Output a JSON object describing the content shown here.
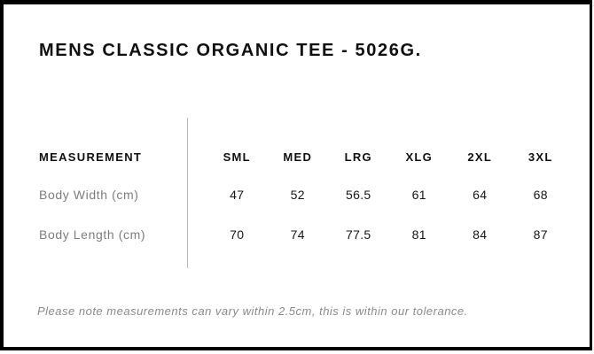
{
  "page": {
    "title": "MENS CLASSIC ORGANIC TEE - 5026G.",
    "tolerance_note": "Please note measurements can vary within 2.5cm, this is within our tolerance."
  },
  "size_chart": {
    "measurement_header": "MEASUREMENT",
    "size_headers": [
      "SML",
      "MED",
      "LRG",
      "XLG",
      "2XL",
      "3XL"
    ],
    "rows": [
      {
        "label": "Body Width (cm)",
        "values": [
          "47",
          "52",
          "56.5",
          "61",
          "64",
          "68"
        ]
      },
      {
        "label": "Body Length (cm)",
        "values": [
          "70",
          "74",
          "77.5",
          "81",
          "84",
          "87"
        ]
      }
    ]
  },
  "colors": {
    "background": "#ffffff",
    "border": "#000000",
    "heading_text": "#101010",
    "value_text": "#161616",
    "row_label_text": "#7d7d7d",
    "note_text": "#8a8a8a",
    "divider": "#bdbdbd"
  }
}
